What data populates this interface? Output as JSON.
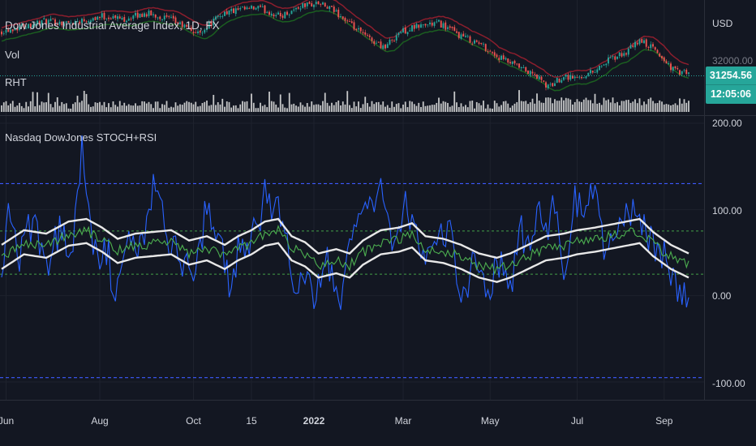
{
  "header": {
    "symbol_title": "Dow Jones Industrial Average Index, 1D, FX",
    "vol_label": "Vol",
    "rht_label": "RHT",
    "indicator_title": "Nasdaq DowJones STOCH+RSI"
  },
  "price_axis": {
    "currency": "USD",
    "hidden_level": "32000.00",
    "last_price": "31254.56",
    "countdown": "12:05:06"
  },
  "colors": {
    "background": "#131722",
    "bull": "#26a69a",
    "bear": "#ef5350",
    "upper_band": "#8b1e2d",
    "lower_band": "#1b5e20",
    "stoch_line": "#2962ff",
    "rsi_line": "#4caf50",
    "envelope": "#e8e8e8",
    "outer_dashed": "#3d5afe",
    "inner_dashed": "#43a047"
  },
  "chart_data": {
    "type": "line",
    "indicator_axis": {
      "ticks": [
        "200.00",
        "100.00",
        "0.00",
        "-100.00"
      ],
      "tick_values": [
        200,
        100,
        0,
        -100
      ],
      "ylim": [
        -125,
        205
      ],
      "levels": {
        "outer_upper": 130,
        "inner_upper": 75,
        "inner_lower": 25,
        "outer_lower": -95
      }
    },
    "x_ticks": [
      {
        "label": "Jun",
        "bar": 2,
        "bold": false
      },
      {
        "label": "Aug",
        "bar": 44,
        "bold": false
      },
      {
        "label": "Oct",
        "bar": 86,
        "bold": false
      },
      {
        "label": "15",
        "bar": 112,
        "bold": false
      },
      {
        "label": "2022",
        "bar": 140,
        "bold": true
      },
      {
        "label": "Mar",
        "bar": 180,
        "bold": false
      },
      {
        "label": "May",
        "bar": 219,
        "bold": false
      },
      {
        "label": "Jul",
        "bar": 258,
        "bold": false
      },
      {
        "label": "Sep",
        "bar": 297,
        "bold": false
      }
    ],
    "n_bars": 309,
    "price_keys": [
      [
        0,
        34400
      ],
      [
        8,
        34700
      ],
      [
        18,
        35100
      ],
      [
        30,
        35000
      ],
      [
        45,
        35500
      ],
      [
        55,
        35300
      ],
      [
        65,
        35700
      ],
      [
        75,
        35300
      ],
      [
        88,
        34200
      ],
      [
        100,
        35800
      ],
      [
        115,
        36100
      ],
      [
        125,
        35500
      ],
      [
        135,
        36300
      ],
      [
        142,
        36450
      ],
      [
        150,
        35800
      ],
      [
        158,
        34600
      ],
      [
        165,
        33800
      ],
      [
        172,
        33200
      ],
      [
        178,
        34300
      ],
      [
        188,
        34800
      ],
      [
        196,
        35000
      ],
      [
        205,
        34100
      ],
      [
        215,
        33400
      ],
      [
        222,
        32500
      ],
      [
        228,
        32000
      ],
      [
        240,
        31000
      ],
      [
        245,
        30200
      ],
      [
        252,
        31100
      ],
      [
        258,
        30900
      ],
      [
        265,
        31400
      ],
      [
        272,
        32200
      ],
      [
        280,
        32800
      ],
      [
        286,
        33700
      ],
      [
        292,
        33100
      ],
      [
        300,
        31700
      ],
      [
        304,
        31300
      ],
      [
        308,
        31250
      ]
    ],
    "price_range": [
      29600,
      36700
    ],
    "stoch_keys": [
      [
        0,
        35
      ],
      [
        3,
        90
      ],
      [
        8,
        50
      ],
      [
        14,
        85
      ],
      [
        20,
        40
      ],
      [
        26,
        75
      ],
      [
        32,
        58
      ],
      [
        36,
        180
      ],
      [
        40,
        80
      ],
      [
        44,
        35
      ],
      [
        48,
        55
      ],
      [
        50,
        -20
      ],
      [
        56,
        75
      ],
      [
        62,
        50
      ],
      [
        68,
        125
      ],
      [
        75,
        70
      ],
      [
        80,
        40
      ],
      [
        88,
        35
      ],
      [
        92,
        105
      ],
      [
        96,
        70
      ],
      [
        102,
        20
      ],
      [
        108,
        65
      ],
      [
        115,
        70
      ],
      [
        118,
        120
      ],
      [
        122,
        105
      ],
      [
        126,
        85
      ],
      [
        130,
        25
      ],
      [
        134,
        20
      ],
      [
        140,
        0
      ],
      [
        146,
        40
      ],
      [
        152,
        5
      ],
      [
        158,
        70
      ],
      [
        164,
        100
      ],
      [
        170,
        120
      ],
      [
        176,
        45
      ],
      [
        180,
        110
      ],
      [
        184,
        75
      ],
      [
        190,
        30
      ],
      [
        196,
        60
      ],
      [
        200,
        80
      ],
      [
        206,
        5
      ],
      [
        212,
        35
      ],
      [
        218,
        5
      ],
      [
        222,
        40
      ],
      [
        228,
        10
      ],
      [
        232,
        75
      ],
      [
        236,
        60
      ],
      [
        240,
        95
      ],
      [
        244,
        80
      ],
      [
        248,
        100
      ],
      [
        252,
        5
      ],
      [
        256,
        110
      ],
      [
        262,
        95
      ],
      [
        266,
        125
      ],
      [
        270,
        60
      ],
      [
        276,
        80
      ],
      [
        282,
        100
      ],
      [
        288,
        80
      ],
      [
        296,
        50
      ],
      [
        300,
        30
      ],
      [
        304,
        10
      ],
      [
        308,
        5
      ]
    ],
    "rsi_keys": [
      [
        0,
        45
      ],
      [
        10,
        62
      ],
      [
        20,
        58
      ],
      [
        30,
        72
      ],
      [
        38,
        75
      ],
      [
        45,
        65
      ],
      [
        52,
        52
      ],
      [
        60,
        58
      ],
      [
        68,
        60
      ],
      [
        76,
        62
      ],
      [
        84,
        50
      ],
      [
        92,
        55
      ],
      [
        100,
        45
      ],
      [
        106,
        55
      ],
      [
        112,
        62
      ],
      [
        118,
        72
      ],
      [
        124,
        75
      ],
      [
        130,
        55
      ],
      [
        136,
        48
      ],
      [
        142,
        35
      ],
      [
        150,
        40
      ],
      [
        156,
        35
      ],
      [
        162,
        50
      ],
      [
        170,
        62
      ],
      [
        178,
        65
      ],
      [
        184,
        70
      ],
      [
        190,
        55
      ],
      [
        198,
        52
      ],
      [
        206,
        45
      ],
      [
        214,
        35
      ],
      [
        222,
        30
      ],
      [
        228,
        35
      ],
      [
        236,
        45
      ],
      [
        244,
        55
      ],
      [
        252,
        58
      ],
      [
        258,
        62
      ],
      [
        266,
        65
      ],
      [
        272,
        68
      ],
      [
        280,
        72
      ],
      [
        286,
        75
      ],
      [
        292,
        60
      ],
      [
        300,
        45
      ],
      [
        308,
        35
      ]
    ]
  }
}
